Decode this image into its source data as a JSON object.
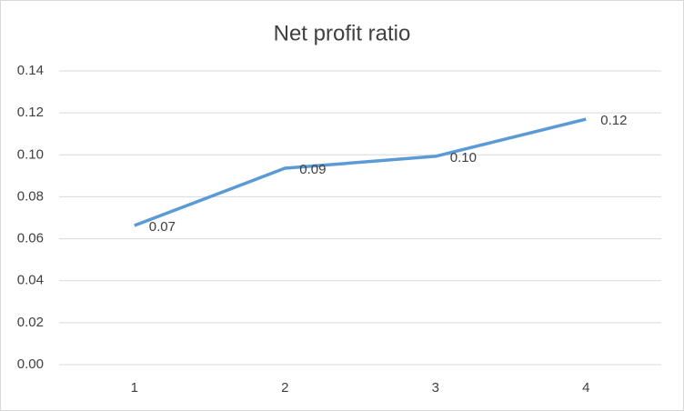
{
  "chart_data": {
    "type": "line",
    "title": "Net profit ratio",
    "categories": [
      "1",
      "2",
      "3",
      "4"
    ],
    "series": [
      {
        "color": "#5b9bd5",
        "values": [
          0.0663,
          0.0936,
          0.0993,
          0.117
        ],
        "value_labels": [
          "0.07",
          "0.09",
          "0.10",
          "0.12"
        ]
      }
    ],
    "ylim": [
      0,
      0.14
    ],
    "yticks": [
      {
        "value": 0,
        "label": "0.00"
      },
      {
        "value": 0.02,
        "label": "0.02"
      },
      {
        "value": 0.04,
        "label": "0.04"
      },
      {
        "value": 0.06,
        "label": "0.06"
      },
      {
        "value": 0.08,
        "label": "0.08"
      },
      {
        "value": 0.1,
        "label": "0.10"
      },
      {
        "value": 0.12,
        "label": "0.12"
      },
      {
        "value": 0.14,
        "label": "0.14"
      }
    ],
    "grid": true
  }
}
